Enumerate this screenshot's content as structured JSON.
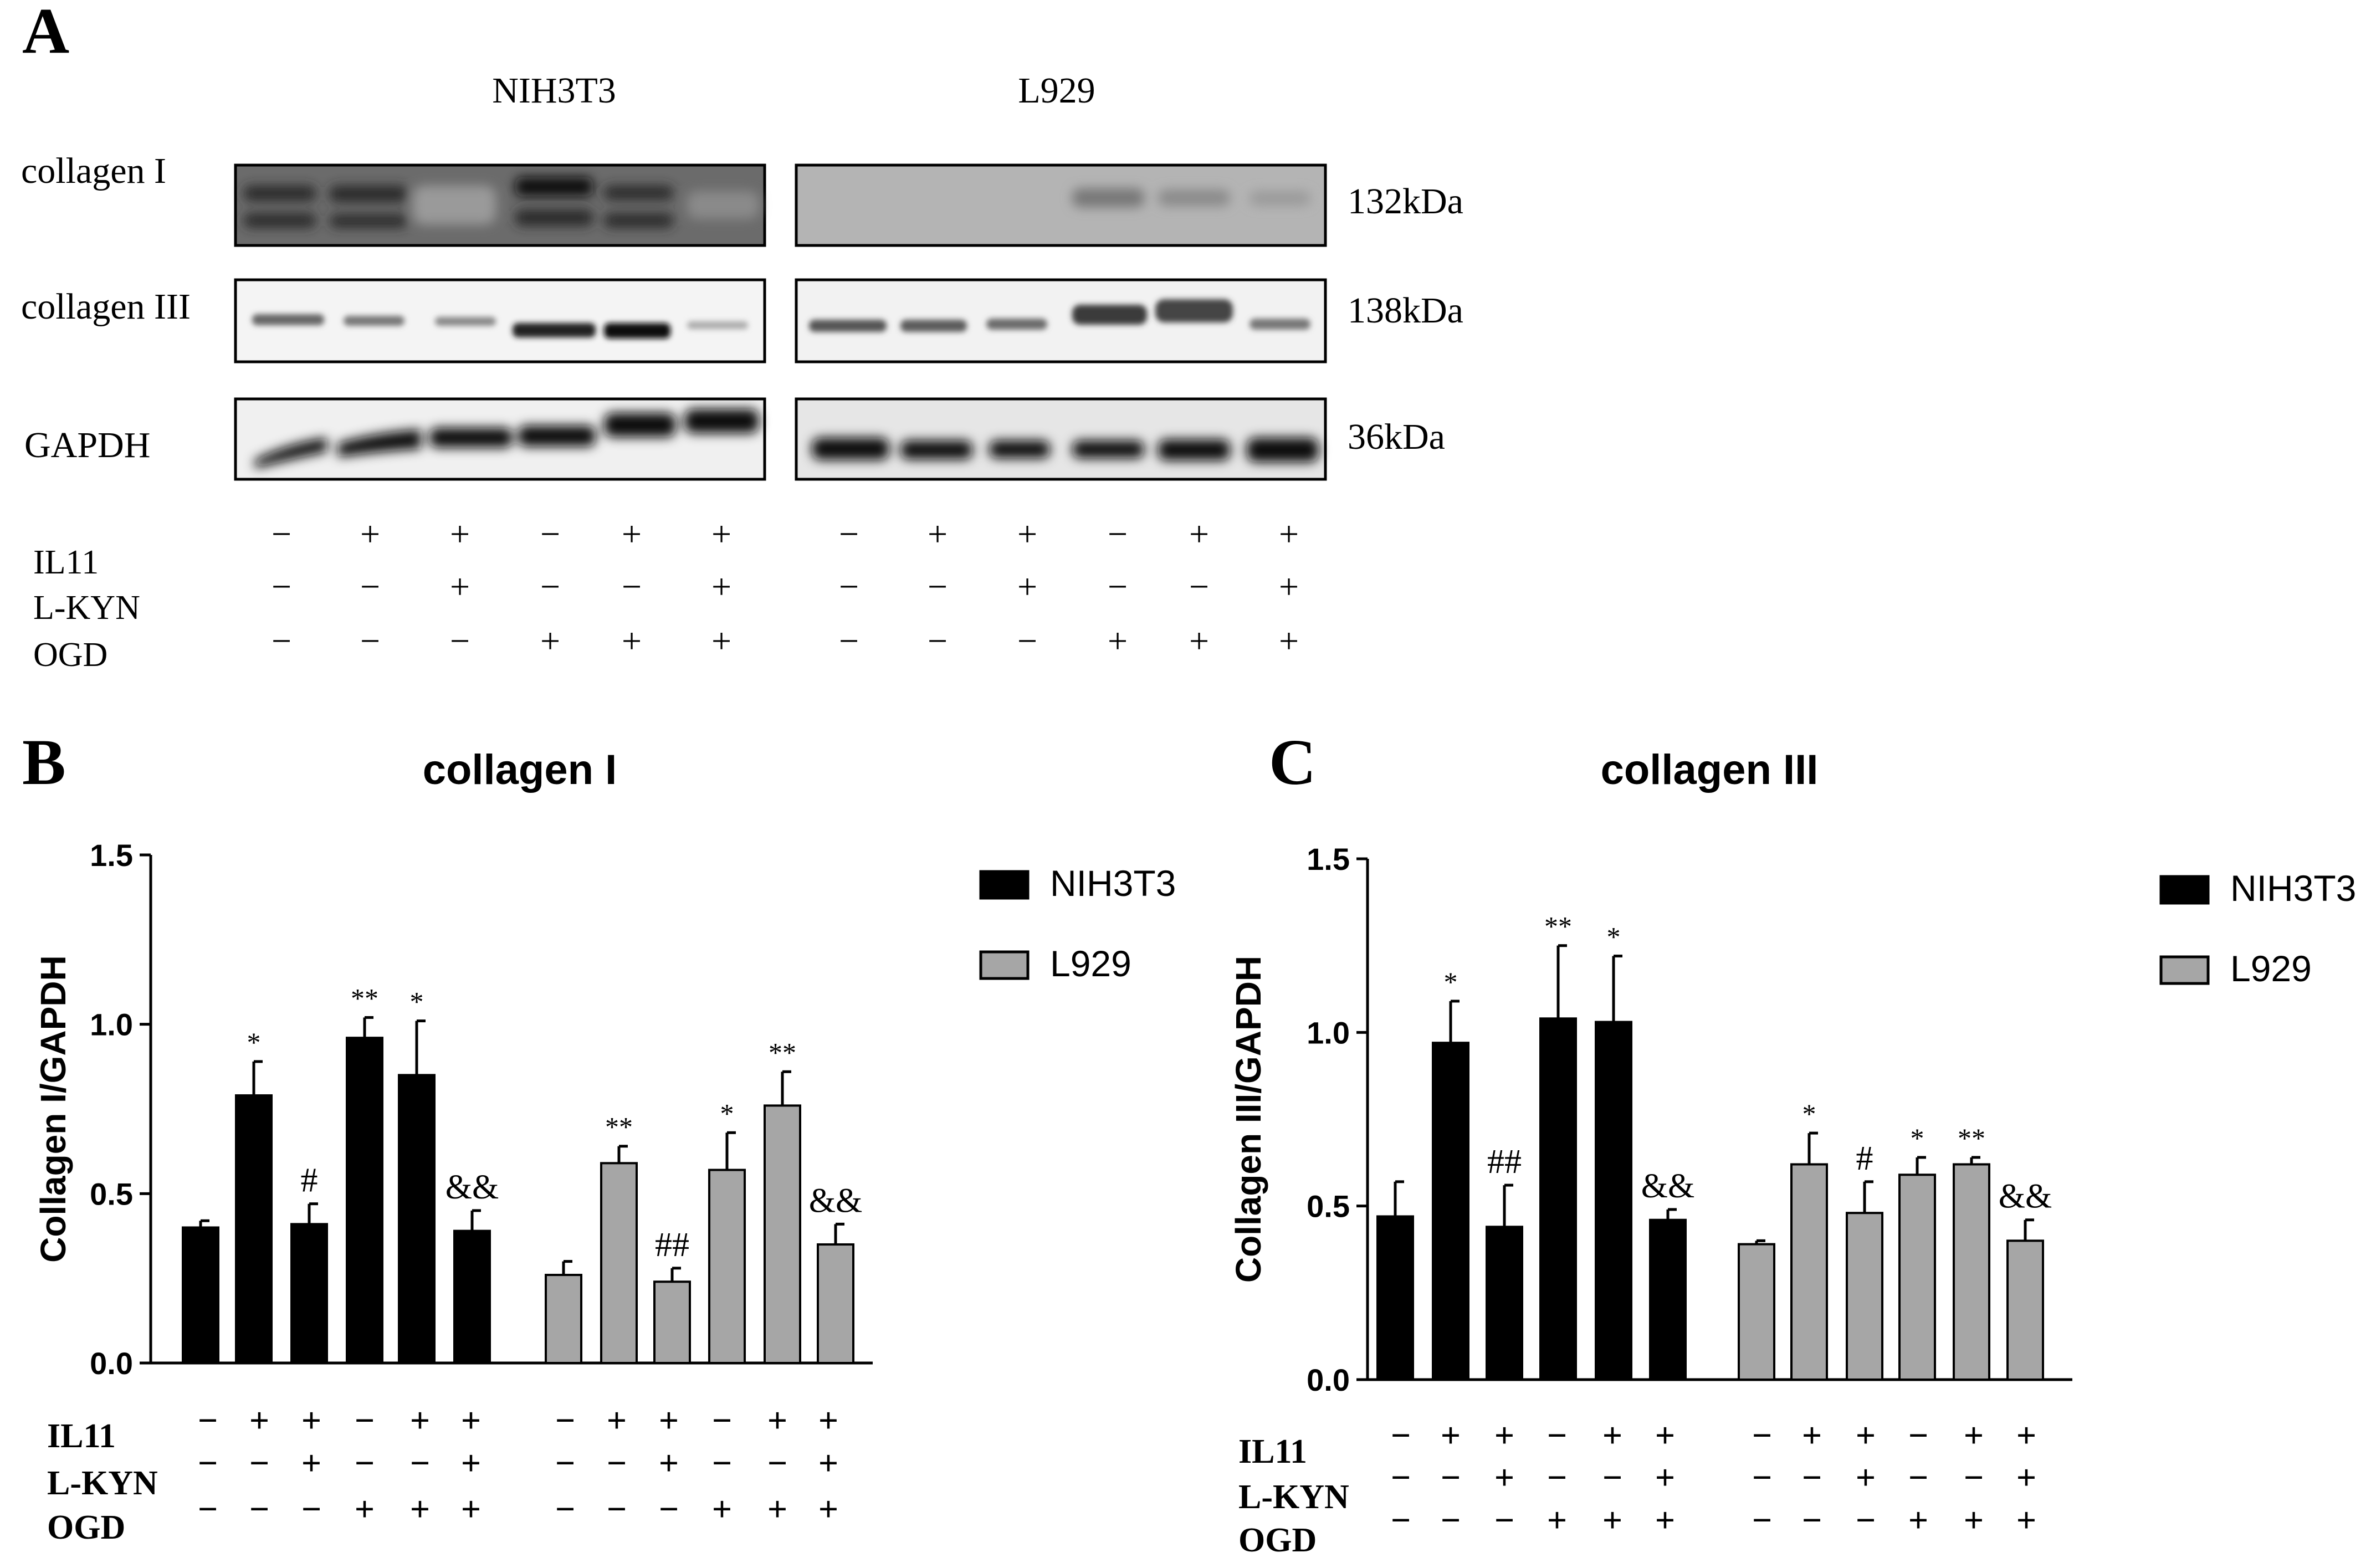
{
  "panels": {
    "A": {
      "label": "A",
      "cell_lines": [
        "NIH3T3",
        "L929"
      ],
      "row_labels": [
        "collagen I",
        "collagen III",
        "GAPDH"
      ],
      "kda": [
        "132kDa",
        "138kDa",
        "36kDa"
      ],
      "cond_labels": [
        "IL11",
        "L-KYN",
        "OGD"
      ],
      "conditions": [
        [
          "−",
          "+",
          "+",
          "−",
          "+",
          "+"
        ],
        [
          "−",
          "−",
          "+",
          "−",
          "−",
          "+"
        ],
        [
          "−",
          "−",
          "−",
          "+",
          "+",
          "+"
        ]
      ]
    },
    "B": {
      "label": "B",
      "cond_labels": [
        "IL11",
        "L-KYN",
        "OGD"
      ],
      "conditions": [
        [
          "−",
          "+",
          "+",
          "−",
          "+",
          "+"
        ],
        [
          "−",
          "−",
          "+",
          "−",
          "−",
          "+"
        ],
        [
          "−",
          "−",
          "−",
          "+",
          "+",
          "+"
        ]
      ]
    },
    "C": {
      "label": "C",
      "cond_labels": [
        "IL11",
        "L-KYN",
        "OGD"
      ],
      "conditions": [
        [
          "−",
          "+",
          "+",
          "−",
          "+",
          "+"
        ],
        [
          "−",
          "−",
          "+",
          "−",
          "−",
          "+"
        ],
        [
          "−",
          "−",
          "−",
          "+",
          "+",
          "+"
        ]
      ]
    }
  },
  "chart_data": [
    {
      "type": "bar",
      "title": "collagen I",
      "ylabel": "Collagen I/GAPDH",
      "ylim": [
        0,
        1.5
      ],
      "yticks": [
        "0.0",
        "0.5",
        "1.0",
        "1.5"
      ],
      "colors": {
        "NIH3T3": "#000000",
        "L929": "#a6a6a6"
      },
      "series": [
        {
          "name": "NIH3T3",
          "values": [
            0.4,
            0.79,
            0.41,
            0.96,
            0.85,
            0.39
          ],
          "errors": [
            0.02,
            0.1,
            0.06,
            0.06,
            0.16,
            0.06
          ],
          "sig": [
            "",
            "*",
            "#",
            "**",
            "*",
            "&&"
          ]
        },
        {
          "name": "L929",
          "values": [
            0.26,
            0.59,
            0.24,
            0.57,
            0.76,
            0.35
          ],
          "errors": [
            0.04,
            0.05,
            0.04,
            0.11,
            0.1,
            0.06
          ],
          "sig": [
            "",
            "**",
            "##",
            "*",
            "**",
            "&&"
          ]
        }
      ]
    },
    {
      "type": "bar",
      "title": "collagen III",
      "ylabel": "Collagen III/GAPDH",
      "ylim": [
        0,
        1.5
      ],
      "yticks": [
        "0.0",
        "0.5",
        "1.0",
        "1.5"
      ],
      "colors": {
        "NIH3T3": "#000000",
        "L929": "#a6a6a6"
      },
      "series": [
        {
          "name": "NIH3T3",
          "values": [
            0.47,
            0.97,
            0.44,
            1.04,
            1.03,
            0.46
          ],
          "errors": [
            0.1,
            0.12,
            0.12,
            0.21,
            0.19,
            0.03
          ],
          "sig": [
            "",
            "*",
            "##",
            "**",
            "*",
            "&&"
          ]
        },
        {
          "name": "L929",
          "values": [
            0.39,
            0.62,
            0.48,
            0.59,
            0.62,
            0.4
          ],
          "errors": [
            0.01,
            0.09,
            0.09,
            0.05,
            0.02,
            0.06
          ],
          "sig": [
            "",
            "*",
            "#",
            "*",
            "**",
            "&&"
          ]
        }
      ]
    }
  ]
}
